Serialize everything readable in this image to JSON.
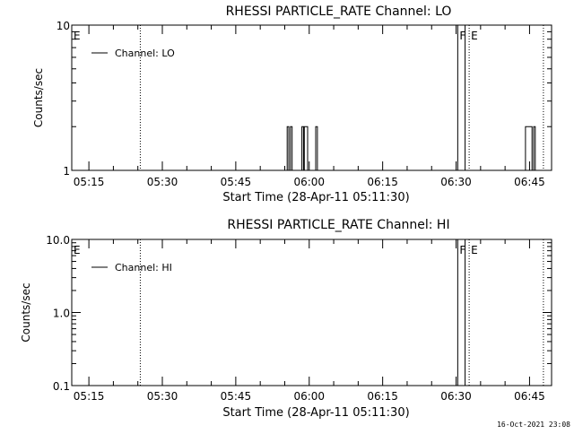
{
  "footer": {
    "timestamp": "16-Oct-2021 23:08"
  },
  "chart_data": [
    {
      "type": "line",
      "title": "RHESSI PARTICLE_RATE Channel: LO",
      "xlabel": "Start Time (28-Apr-11 05:11:30)",
      "ylabel": "Counts/sec",
      "ylog": true,
      "xlim": [
        "05:11:30",
        "06:49:30"
      ],
      "ylim": [
        1,
        10
      ],
      "x_ticks": [
        "05:15",
        "05:30",
        "05:45",
        "06:00",
        "06:15",
        "06:30",
        "06:45"
      ],
      "y_ticks": [
        1,
        10
      ],
      "y_tick_labels": [
        "1",
        "10"
      ],
      "legend": {
        "placement": "top-left",
        "entries": [
          "Channel: LO"
        ]
      },
      "series": [
        {
          "name": "Channel: LO",
          "type": "step",
          "points": [
            [
              "05:11:30",
              1
            ],
            [
              "05:55:30",
              1
            ],
            [
              "05:55:30",
              2
            ],
            [
              "05:55:50",
              2
            ],
            [
              "05:55:50",
              1
            ],
            [
              "05:56:10",
              1
            ],
            [
              "05:56:10",
              2
            ],
            [
              "05:56:30",
              2
            ],
            [
              "05:56:30",
              1
            ],
            [
              "05:58:30",
              1
            ],
            [
              "05:58:30",
              2
            ],
            [
              "05:58:50",
              2
            ],
            [
              "05:58:50",
              1
            ],
            [
              "05:59:00",
              1
            ],
            [
              "05:59:00",
              2
            ],
            [
              "05:59:40",
              2
            ],
            [
              "05:59:40",
              1
            ],
            [
              "06:01:20",
              1
            ],
            [
              "06:01:20",
              2
            ],
            [
              "06:01:40",
              2
            ],
            [
              "06:01:40",
              1
            ],
            [
              "06:44:10",
              1
            ],
            [
              "06:44:10",
              2
            ],
            [
              "06:45:30",
              2
            ],
            [
              "06:45:30",
              1
            ],
            [
              "06:45:50",
              1
            ],
            [
              "06:45:50",
              2
            ],
            [
              "06:46:10",
              2
            ],
            [
              "06:46:10",
              1
            ],
            [
              "06:49:30",
              1
            ]
          ]
        }
      ],
      "markers": [
        {
          "time": "05:11:30",
          "label": "E",
          "style": "label-only"
        },
        {
          "time": "05:25:30",
          "label": "",
          "style": "dotted"
        },
        {
          "time": "06:30:20",
          "label": "F",
          "style": "solid"
        },
        {
          "time": "06:31:50",
          "label": "",
          "style": "solid"
        },
        {
          "time": "06:32:40",
          "label": "E",
          "style": "dotted"
        },
        {
          "time": "06:47:50",
          "label": "",
          "style": "dotted"
        }
      ]
    },
    {
      "type": "line",
      "title": "RHESSI PARTICLE_RATE Channel: HI",
      "xlabel": "Start Time (28-Apr-11 05:11:30)",
      "ylabel": "Counts/sec",
      "ylog": true,
      "xlim": [
        "05:11:30",
        "06:49:30"
      ],
      "ylim": [
        0.1,
        10
      ],
      "x_ticks": [
        "05:15",
        "05:30",
        "05:45",
        "06:00",
        "06:15",
        "06:30",
        "06:45"
      ],
      "y_ticks": [
        0.1,
        1,
        10
      ],
      "y_tick_labels": [
        "0.1",
        "1.0",
        "10.0"
      ],
      "legend": {
        "placement": "top-left",
        "entries": [
          "Channel: HI"
        ]
      },
      "series": [
        {
          "name": "Channel: HI",
          "type": "step",
          "points": []
        }
      ],
      "markers": [
        {
          "time": "05:11:30",
          "label": "E",
          "style": "label-only"
        },
        {
          "time": "05:25:30",
          "label": "",
          "style": "dotted"
        },
        {
          "time": "06:30:20",
          "label": "F",
          "style": "solid"
        },
        {
          "time": "06:31:50",
          "label": "",
          "style": "solid"
        },
        {
          "time": "06:32:40",
          "label": "E",
          "style": "dotted"
        },
        {
          "time": "06:47:50",
          "label": "",
          "style": "dotted"
        }
      ]
    }
  ]
}
